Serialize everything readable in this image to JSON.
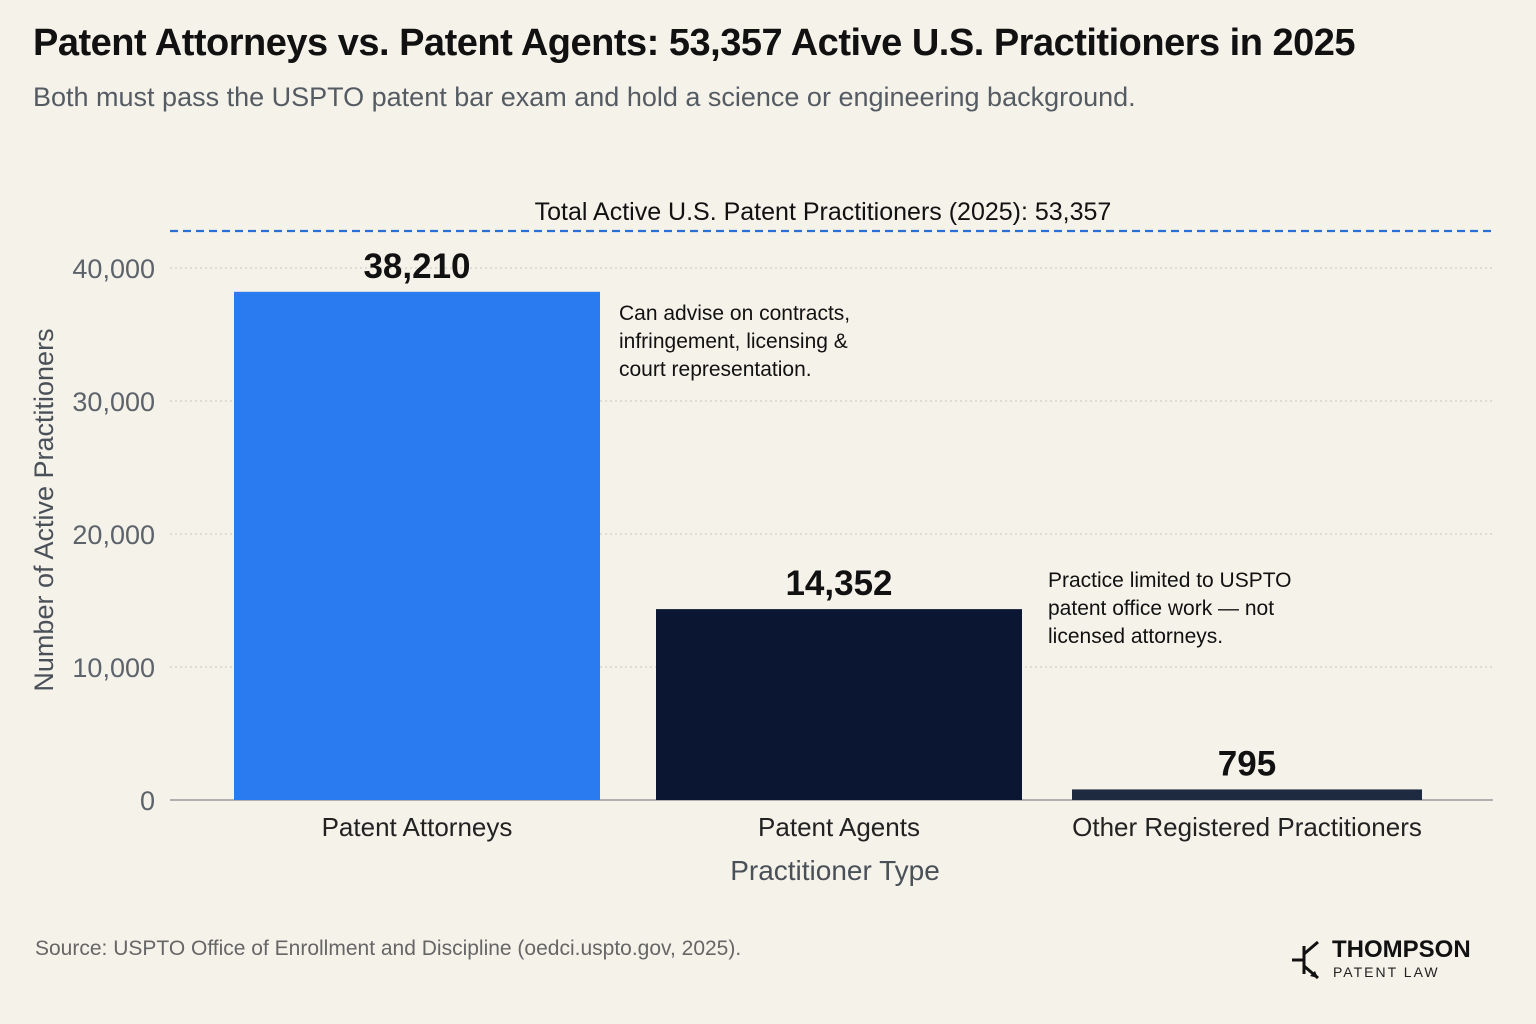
{
  "header": {
    "title": "Patent Attorneys vs. Patent Agents: 53,357 Active U.S. Practitioners in 2025",
    "subtitle": "Both must pass the USPTO patent bar exam and hold a science or engineering background."
  },
  "chart_data": {
    "type": "bar",
    "categories": [
      "Patent Attorneys",
      "Patent Agents",
      "Other Registered Practitioners"
    ],
    "values": [
      38210,
      14352,
      795
    ],
    "value_labels": [
      "38,210",
      "14,352",
      "795"
    ],
    "bar_colors": [
      "#2a7bf0",
      "#0b1633",
      "#1e2a40"
    ],
    "xlabel": "Practitioner Type",
    "ylabel": "Number of Active Practitioners",
    "ylim": [
      0,
      40000
    ],
    "yticks": [
      0,
      10000,
      20000,
      30000,
      40000
    ],
    "ytick_labels": [
      "0",
      "10,000",
      "20,000",
      "30,000",
      "40,000"
    ],
    "grid": true,
    "reference_line": {
      "value": 53357,
      "label": "Total Active U.S. Patent Practitioners (2025): 53,357",
      "color": "#2a6fd6",
      "style": "dashed"
    },
    "annotations": [
      {
        "category": "Patent Attorneys",
        "lines": [
          "Can advise on contracts,",
          "infringement, licensing &",
          "court representation."
        ]
      },
      {
        "category": "Patent Agents",
        "lines": [
          "Practice limited to USPTO",
          "patent office work — not",
          "licensed attorneys."
        ]
      }
    ]
  },
  "footer": {
    "source": "Source: USPTO Office of Enrollment and Discipline (oedci.uspto.gov, 2025).",
    "logo_name": "THOMPSON",
    "logo_tagline": "PATENT LAW"
  },
  "colors": {
    "background": "#f5f2ea",
    "accent": "#2a7bf0",
    "navy": "#0b1633"
  }
}
